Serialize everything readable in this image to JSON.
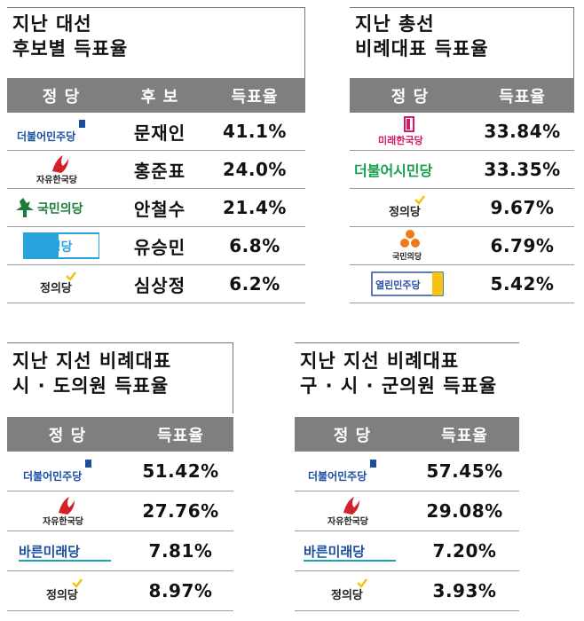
{
  "panels": {
    "p1": {
      "title": [
        "지난 대선",
        "후보별 득표율"
      ],
      "headers": [
        "정 당",
        "후 보",
        "득표율"
      ],
      "rows": [
        {
          "party": "더불어민주당",
          "candidate": "문재인",
          "value": "41.1%"
        },
        {
          "party": "자유한국당",
          "candidate": "홍준표",
          "value": "24.0%"
        },
        {
          "party": "국민의당",
          "candidate": "안철수",
          "value": "21.4%"
        },
        {
          "party": "바른정당",
          "candidate": "유승민",
          "value": "6.8%"
        },
        {
          "party": "정의당",
          "candidate": "심상정",
          "value": "6.2%"
        }
      ]
    },
    "p2": {
      "title": [
        "지난 총선",
        "비례대표 득표율"
      ],
      "headers": [
        "정 당",
        "득표율"
      ],
      "rows": [
        {
          "party": "미래한국당",
          "value": "33.84%"
        },
        {
          "party": "더불어시민당",
          "value": "33.35%"
        },
        {
          "party": "정의당",
          "value": "9.67%"
        },
        {
          "party": "국민의당",
          "value": "6.79%"
        },
        {
          "party": "열린민주당",
          "value": "5.42%"
        }
      ]
    },
    "p3": {
      "title": [
        "지난 지선 비례대표",
        "시 · 도의원 득표율"
      ],
      "headers": [
        "정 당",
        "득표율"
      ],
      "rows": [
        {
          "party": "더불어민주당",
          "value": "51.42%"
        },
        {
          "party": "자유한국당",
          "value": "27.76%"
        },
        {
          "party": "바른미래당",
          "value": "7.81%"
        },
        {
          "party": "정의당",
          "value": "8.97%"
        }
      ]
    },
    "p4": {
      "title": [
        "지난 지선 비례대표",
        "구 · 시 · 군의원 득표율"
      ],
      "headers": [
        "정 당",
        "득표율"
      ],
      "rows": [
        {
          "party": "더불어민주당",
          "value": "57.45%"
        },
        {
          "party": "자유한국당",
          "value": "29.08%"
        },
        {
          "party": "바른미래당",
          "value": "7.20%"
        },
        {
          "party": "정의당",
          "value": "3.93%"
        }
      ]
    }
  },
  "colors": {
    "header_bg": "#7f7f7f",
    "minjoo_blue": "#1a4ea0",
    "minjoo_green": "#16a04a",
    "liberty_red": "#d3202b",
    "people_green": "#1c7a3a",
    "bareun_blue": "#29a3dc",
    "justice_yellow": "#f2c40f",
    "future_korea_pink": "#d4196b",
    "people_orange": "#f07a1a",
    "open_blue": "#2b4fa2",
    "bareun_mirae_teal": "#1aa3b5"
  }
}
